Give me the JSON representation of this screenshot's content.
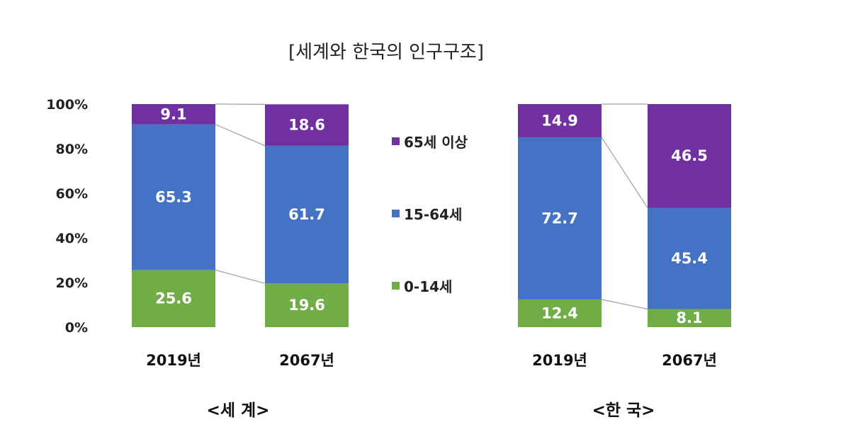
{
  "chart_data": {
    "type": "bar",
    "stacked": true,
    "normalized": true,
    "title": "[세계와 한국의 인구구조]",
    "y_ticks": [
      "0%",
      "20%",
      "40%",
      "60%",
      "80%",
      "100%"
    ],
    "ylim": [
      0,
      100
    ],
    "series": [
      {
        "name": "0-14세",
        "color": "#70ad47"
      },
      {
        "name": "15-64세",
        "color": "#4472c4"
      },
      {
        "name": "65세 이상",
        "color": "#7030a0"
      }
    ],
    "panels": [
      {
        "name": "<세 계>",
        "categories": [
          "2019년",
          "2067년"
        ],
        "values": [
          [
            25.6,
            65.3,
            9.1
          ],
          [
            19.6,
            61.7,
            18.6
          ]
        ]
      },
      {
        "name": "<한 국>",
        "categories": [
          "2019년",
          "2067년"
        ],
        "values": [
          [
            12.4,
            72.7,
            14.9
          ],
          [
            8.1,
            45.4,
            46.5
          ]
        ]
      }
    ]
  }
}
